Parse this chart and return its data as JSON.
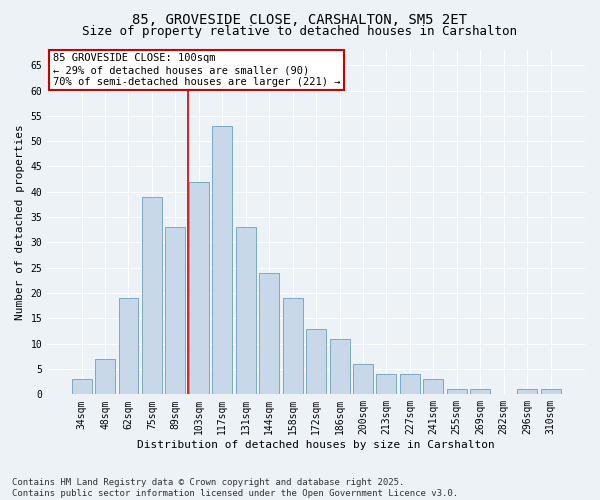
{
  "title": "85, GROVESIDE CLOSE, CARSHALTON, SM5 2ET",
  "subtitle": "Size of property relative to detached houses in Carshalton",
  "xlabel": "Distribution of detached houses by size in Carshalton",
  "ylabel": "Number of detached properties",
  "categories": [
    "34sqm",
    "48sqm",
    "62sqm",
    "75sqm",
    "89sqm",
    "103sqm",
    "117sqm",
    "131sqm",
    "144sqm",
    "158sqm",
    "172sqm",
    "186sqm",
    "200sqm",
    "213sqm",
    "227sqm",
    "241sqm",
    "255sqm",
    "269sqm",
    "282sqm",
    "296sqm",
    "310sqm"
  ],
  "values": [
    3,
    7,
    19,
    39,
    33,
    42,
    53,
    33,
    24,
    19,
    13,
    11,
    6,
    4,
    4,
    3,
    1,
    1,
    0,
    1,
    1
  ],
  "bar_color": "#c8d8e8",
  "bar_edge_color": "#7aaac8",
  "red_line_x": 4.55,
  "red_line_color": "#cc0000",
  "annotation_text": "85 GROVESIDE CLOSE: 100sqm\n← 29% of detached houses are smaller (90)\n70% of semi-detached houses are larger (221) →",
  "annotation_box_edge": "#cc0000",
  "ylim": [
    0,
    68
  ],
  "yticks": [
    0,
    5,
    10,
    15,
    20,
    25,
    30,
    35,
    40,
    45,
    50,
    55,
    60,
    65
  ],
  "footer": "Contains HM Land Registry data © Crown copyright and database right 2025.\nContains public sector information licensed under the Open Government Licence v3.0.",
  "bg_color": "#edf2f7",
  "plot_bg_color": "#edf2f7",
  "grid_color": "#ffffff",
  "title_fontsize": 10,
  "subtitle_fontsize": 9,
  "axis_label_fontsize": 8,
  "tick_fontsize": 7,
  "footer_fontsize": 6.5,
  "annotation_fontsize": 7.5
}
